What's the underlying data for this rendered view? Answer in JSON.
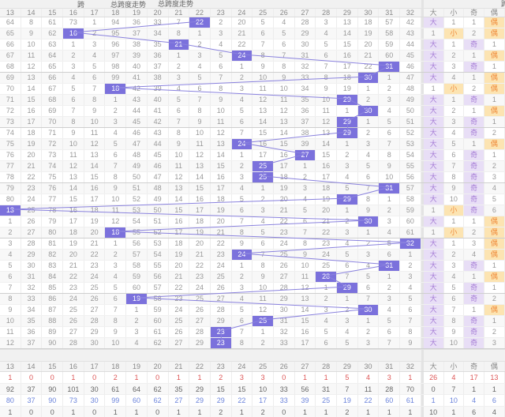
{
  "colors": {
    "highlight": "#7b71dc",
    "line": "#8a82de",
    "big_odd_bg": "#e8def6",
    "big_odd_text": "#a57cd5",
    "small_even_bg": "#fce4b2",
    "small_even_text": "#ef8a3a",
    "stat_red": "#dd5555",
    "stat_blue": "#6a83db",
    "stat_dark": "#666666"
  },
  "chart_data": {
    "type": "table",
    "title": "总跨度走势",
    "bottom_title": "总跨度走势",
    "right_header_partial": "跨",
    "columns": [
      "13",
      "14",
      "15",
      "16",
      "17",
      "18",
      "19",
      "20",
      "21",
      "22",
      "23",
      "24",
      "25",
      "26",
      "27",
      "28",
      "29",
      "30",
      "31",
      "32"
    ],
    "pattern_columns": [
      "大",
      "小",
      "奇",
      "偶"
    ],
    "rows": [
      {
        "c": [
          64,
          8,
          61,
          73,
          1,
          94,
          36,
          33,
          7,
          22,
          2,
          20,
          5,
          4,
          28,
          3,
          13,
          18,
          57,
          42,
          "大",
          1,
          1,
          "偶"
        ],
        "h": 9
      },
      {
        "c": [
          65,
          9,
          62,
          16,
          2,
          95,
          37,
          34,
          8,
          1,
          3,
          21,
          6,
          5,
          29,
          4,
          14,
          19,
          58,
          43,
          1,
          "小",
          2,
          "偶"
        ],
        "h": 3
      },
      {
        "c": [
          66,
          10,
          63,
          1,
          3,
          96,
          38,
          35,
          21,
          2,
          4,
          22,
          7,
          6,
          30,
          5,
          15,
          20,
          59,
          44,
          "大",
          1,
          "奇",
          1
        ],
        "h": 8
      },
      {
        "c": [
          67,
          11,
          64,
          2,
          4,
          97,
          39,
          36,
          1,
          3,
          5,
          24,
          8,
          7,
          31,
          6,
          16,
          21,
          60,
          45,
          "大",
          2,
          1,
          "偶"
        ],
        "h": 11
      },
      {
        "c": [
          68,
          12,
          65,
          3,
          5,
          98,
          40,
          37,
          2,
          4,
          6,
          1,
          9,
          8,
          32,
          7,
          17,
          22,
          31,
          46,
          "大",
          3,
          "奇",
          1
        ],
        "h": 18
      },
      {
        "c": [
          69,
          13,
          66,
          4,
          6,
          99,
          41,
          38,
          3,
          5,
          7,
          2,
          10,
          9,
          33,
          8,
          18,
          30,
          1,
          47,
          "大",
          4,
          1,
          "偶"
        ],
        "h": 17
      },
      {
        "c": [
          70,
          14,
          67,
          5,
          7,
          18,
          42,
          39,
          4,
          6,
          8,
          3,
          11,
          10,
          34,
          9,
          19,
          1,
          2,
          48,
          1,
          "小",
          2,
          "偶"
        ],
        "h": 5
      },
      {
        "c": [
          71,
          15,
          68,
          6,
          8,
          1,
          43,
          40,
          5,
          7,
          9,
          4,
          12,
          11,
          35,
          10,
          29,
          2,
          3,
          49,
          "大",
          1,
          "奇",
          1
        ],
        "h": 16
      },
      {
        "c": [
          72,
          16,
          69,
          7,
          9,
          2,
          44,
          41,
          6,
          8,
          10,
          5,
          13,
          12,
          36,
          11,
          1,
          30,
          4,
          50,
          "大",
          2,
          1,
          "偶"
        ],
        "h": 17
      },
      {
        "c": [
          73,
          17,
          70,
          8,
          10,
          3,
          45,
          42,
          7,
          9,
          11,
          6,
          14,
          13,
          37,
          12,
          29,
          1,
          5,
          51,
          "大",
          3,
          "奇",
          1
        ],
        "h": 16
      },
      {
        "c": [
          74,
          18,
          71,
          9,
          11,
          4,
          46,
          43,
          8,
          10,
          12,
          7,
          15,
          14,
          38,
          13,
          29,
          2,
          6,
          52,
          "大",
          4,
          "奇",
          2
        ],
        "h": 16
      },
      {
        "c": [
          75,
          19,
          72,
          10,
          12,
          5,
          47,
          44,
          9,
          11,
          13,
          24,
          16,
          15,
          39,
          14,
          1,
          3,
          7,
          53,
          "大",
          5,
          1,
          "偶"
        ],
        "h": 11
      },
      {
        "c": [
          76,
          20,
          73,
          11,
          13,
          6,
          48,
          45,
          10,
          12,
          14,
          1,
          17,
          16,
          27,
          15,
          2,
          4,
          8,
          54,
          "大",
          6,
          "奇",
          1
        ],
        "h": 14
      },
      {
        "c": [
          77,
          21,
          74,
          12,
          14,
          7,
          49,
          46,
          11,
          13,
          15,
          2,
          25,
          17,
          1,
          16,
          3,
          5,
          9,
          55,
          "大",
          7,
          "奇",
          2
        ],
        "h": 12
      },
      {
        "c": [
          78,
          22,
          75,
          13,
          15,
          8,
          50,
          47,
          12,
          14,
          16,
          3,
          25,
          18,
          2,
          17,
          4,
          6,
          10,
          56,
          "大",
          8,
          "奇",
          3
        ],
        "h": 12
      },
      {
        "c": [
          79,
          23,
          76,
          14,
          16,
          9,
          51,
          48,
          13,
          15,
          17,
          4,
          1,
          19,
          3,
          18,
          5,
          7,
          31,
          57,
          "大",
          9,
          "奇",
          4
        ],
        "h": 18
      },
      {
        "c": [
          80,
          24,
          77,
          15,
          17,
          10,
          52,
          49,
          14,
          16,
          18,
          5,
          2,
          20,
          4,
          19,
          29,
          8,
          1,
          58,
          "大",
          10,
          "奇",
          5
        ],
        "h": 16
      },
      {
        "c": [
          13,
          25,
          78,
          16,
          18,
          11,
          53,
          50,
          15,
          17,
          19,
          6,
          3,
          21,
          5,
          20,
          1,
          9,
          2,
          59,
          1,
          "小",
          "奇",
          6
        ],
        "h": 0
      },
      {
        "c": [
          1,
          26,
          79,
          17,
          19,
          12,
          54,
          51,
          16,
          18,
          20,
          7,
          4,
          22,
          6,
          21,
          2,
          30,
          3,
          60,
          "大",
          1,
          1,
          "偶"
        ],
        "h": 17
      },
      {
        "c": [
          2,
          27,
          80,
          18,
          20,
          18,
          55,
          52,
          17,
          19,
          21,
          8,
          5,
          23,
          7,
          22,
          3,
          1,
          4,
          61,
          1,
          "小",
          2,
          "偶"
        ],
        "h": 5
      },
      {
        "c": [
          3,
          28,
          81,
          19,
          21,
          1,
          56,
          53,
          18,
          20,
          22,
          9,
          6,
          24,
          8,
          23,
          4,
          2,
          5,
          32,
          "大",
          1,
          3,
          "偶"
        ],
        "h": 19
      },
      {
        "c": [
          4,
          29,
          82,
          20,
          22,
          2,
          57,
          54,
          19,
          21,
          23,
          24,
          7,
          25,
          9,
          24,
          5,
          3,
          6,
          1,
          "大",
          2,
          4,
          "偶"
        ],
        "h": 11
      },
      {
        "c": [
          5,
          30,
          83,
          21,
          23,
          3,
          58,
          55,
          20,
          22,
          24,
          1,
          8,
          26,
          10,
          25,
          6,
          4,
          31,
          2,
          "大",
          3,
          "奇",
          1
        ],
        "h": 18
      },
      {
        "c": [
          6,
          31,
          84,
          22,
          24,
          4,
          59,
          56,
          21,
          23,
          25,
          2,
          9,
          27,
          11,
          28,
          7,
          5,
          1,
          3,
          "大",
          4,
          1,
          "偶"
        ],
        "h": 15
      },
      {
        "c": [
          7,
          32,
          85,
          23,
          25,
          5,
          60,
          57,
          22,
          24,
          26,
          3,
          10,
          28,
          12,
          1,
          29,
          6,
          2,
          4,
          "大",
          5,
          "奇",
          1
        ],
        "h": 16
      },
      {
        "c": [
          8,
          33,
          86,
          24,
          26,
          6,
          19,
          58,
          23,
          25,
          27,
          4,
          11,
          29,
          13,
          2,
          1,
          7,
          3,
          5,
          "大",
          6,
          "奇",
          2
        ],
        "h": 6
      },
      {
        "c": [
          9,
          34,
          87,
          25,
          27,
          7,
          1,
          59,
          24,
          26,
          28,
          5,
          12,
          30,
          14,
          3,
          2,
          30,
          4,
          6,
          "大",
          7,
          1,
          "偶"
        ],
        "h": 17
      },
      {
        "c": [
          10,
          35,
          88,
          26,
          28,
          8,
          2,
          60,
          25,
          27,
          29,
          6,
          25,
          31,
          15,
          4,
          3,
          1,
          5,
          7,
          "大",
          8,
          "奇",
          1
        ],
        "h": 12
      },
      {
        "c": [
          11,
          36,
          89,
          27,
          29,
          9,
          3,
          61,
          26,
          28,
          23,
          7,
          1,
          32,
          16,
          5,
          4,
          2,
          6,
          8,
          "大",
          9,
          "奇",
          2
        ],
        "h": 10
      },
      {
        "c": [
          12,
          37,
          90,
          28,
          30,
          10,
          4,
          62,
          27,
          29,
          23,
          8,
          2,
          33,
          17,
          6,
          5,
          3,
          7,
          9,
          "大",
          10,
          "奇",
          3
        ],
        "h": 10
      }
    ],
    "stats_rows": [
      {
        "color": "#dd5555",
        "values": [
          1,
          0,
          0,
          1,
          0,
          2,
          1,
          0,
          1,
          1,
          2,
          3,
          3,
          0,
          1,
          1,
          5,
          4,
          3,
          1,
          26,
          4,
          17,
          13
        ]
      },
      {
        "color": "#666666",
        "values": [
          92,
          37,
          90,
          101,
          30,
          61,
          64,
          62,
          35,
          29,
          15,
          15,
          10,
          33,
          56,
          31,
          7,
          11,
          28,
          70,
          0,
          7,
          1,
          1
        ]
      },
      {
        "color": "#6a83db",
        "values": [
          80,
          37,
          90,
          73,
          30,
          99,
          60,
          62,
          27,
          29,
          29,
          22,
          17,
          33,
          39,
          25,
          19,
          22,
          60,
          61,
          1,
          10,
          4,
          6
        ]
      },
      {
        "color": "#666666",
        "values": [
          1,
          0,
          0,
          1,
          0,
          1,
          1,
          0,
          1,
          1,
          2,
          1,
          2,
          0,
          1,
          1,
          2,
          1,
          1,
          1,
          10,
          1,
          6,
          4
        ]
      }
    ]
  }
}
